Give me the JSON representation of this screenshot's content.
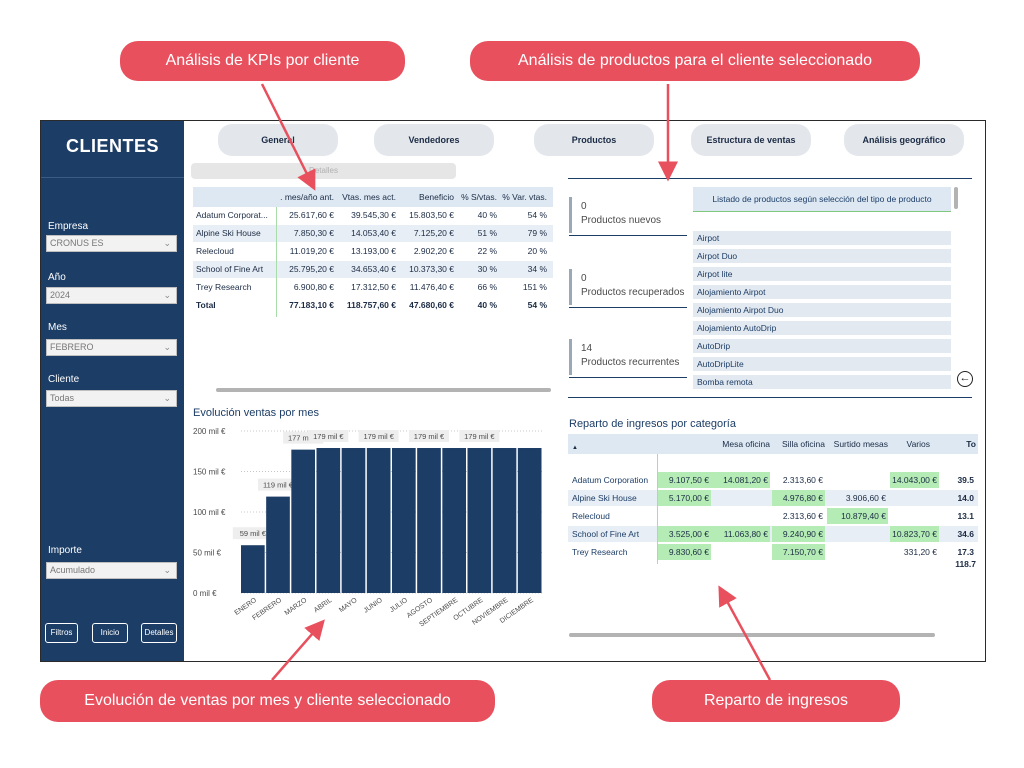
{
  "callouts": {
    "kpi": "Análisis de KPIs por cliente",
    "productos": "Análisis de productos para el cliente seleccionado",
    "evolucion": "Evolución de ventas por mes y cliente seleccionado",
    "reparto": "Reparto de ingresos"
  },
  "sidebar": {
    "title": "CLIENTES",
    "empresa_label": "Empresa",
    "empresa_value": "CRONUS ES",
    "anio_label": "Año",
    "anio_value": "2024",
    "mes_label": "Mes",
    "mes_value": "FEBRERO",
    "cliente_label": "Cliente",
    "cliente_value": "Todas",
    "importe_label": "Importe",
    "importe_value": "Acumulado",
    "buttons": [
      "Filtros",
      "Inicio",
      "Detalles"
    ]
  },
  "tabs": [
    "General",
    "Vendedores",
    "Productos",
    "Estructura de ventas",
    "Análisis geográfico"
  ],
  "kpi_table": {
    "detalles_label": "Detalles",
    "headers": [
      ". mes/año ant.",
      "Vtas. mes act.",
      "Beneficio",
      "% S/vtas.",
      "% Var. vtas."
    ],
    "rows": [
      {
        "name": "Adatum Corporat...",
        "v": [
          "25.617,60 €",
          "39.545,30 €",
          "15.803,50 €",
          "40 %",
          "54 %"
        ]
      },
      {
        "name": "Alpine Ski House",
        "v": [
          "7.850,30 €",
          "14.053,40 €",
          "7.125,20 €",
          "51 %",
          "79 %"
        ]
      },
      {
        "name": "Relecloud",
        "v": [
          "11.019,20 €",
          "13.193,00 €",
          "2.902,20 €",
          "22 %",
          "20 %"
        ]
      },
      {
        "name": "School of Fine Art",
        "v": [
          "25.795,20 €",
          "34.653,40 €",
          "10.373,30 €",
          "30 %",
          "34 %"
        ]
      },
      {
        "name": "Trey Research",
        "v": [
          "6.900,80 €",
          "17.312,50 €",
          "11.476,40 €",
          "66 %",
          "151 %"
        ]
      }
    ],
    "total": {
      "name": "Total",
      "v": [
        "77.183,10 €",
        "118.757,60 €",
        "47.680,60 €",
        "40 %",
        "54 %"
      ]
    }
  },
  "kpis": [
    {
      "value": "0",
      "label": "Productos nuevos"
    },
    {
      "value": "0",
      "label": "Productos recuperados"
    },
    {
      "value": "14",
      "label": "Productos recurrentes"
    }
  ],
  "product_list": {
    "header": "Listado de productos según selección del tipo de producto",
    "items": [
      "Airpot",
      "Airpot Duo",
      "Airpot lite",
      "Alojamiento Airpot",
      "Alojamiento Airpot Duo",
      "Alojamiento AutoDrip",
      "AutoDrip",
      "AutoDripLite",
      "Bomba remota"
    ]
  },
  "chart_data": {
    "type": "bar",
    "title": "Evolución ventas por mes",
    "categories": [
      "ENERO",
      "FEBRERO",
      "MARZO",
      "ABRIL",
      "MAYO",
      "JUNIO",
      "JULIO",
      "AGOSTO",
      "SEPTIEMBRE",
      "OCTUBRE",
      "NOVIEMBRE",
      "DICIEMBRE"
    ],
    "values": [
      59,
      119,
      177,
      179,
      179,
      179,
      179,
      179,
      179,
      179,
      179,
      179
    ],
    "data_labels": [
      "59 mil €",
      "119 mil €",
      "177 mil €",
      "179 mil €",
      "",
      "179 mil €",
      "",
      "179 mil €",
      "",
      "179 mil €",
      "",
      ""
    ],
    "ylim": [
      0,
      200
    ],
    "yticks": [
      0,
      50,
      100,
      150,
      200
    ],
    "ytick_labels": [
      "0 mil €",
      "50 mil €",
      "100 mil €",
      "150 mil €",
      "200 mil €"
    ],
    "bar_color": "#1c3d66",
    "grid": true
  },
  "reparto": {
    "title": "Reparto de ingresos por categoría",
    "headers": [
      "",
      "",
      "Mesa oficina",
      "Silla oficina",
      "Surtido mesas",
      "Varios",
      "To"
    ],
    "rows": [
      {
        "name": "Adatum Corporation",
        "v": [
          "9.107,50 €",
          "14.081,20 €",
          "2.313,60 €",
          "",
          "14.043,00 €",
          "39.5"
        ],
        "g": [
          true,
          true,
          false,
          false,
          true,
          false
        ]
      },
      {
        "name": "Alpine Ski House",
        "v": [
          "5.170,00 €",
          "",
          "4.976,80 €",
          "3.906,60 €",
          "",
          "14.0"
        ],
        "g": [
          true,
          false,
          true,
          false,
          false,
          false
        ]
      },
      {
        "name": "Relecloud",
        "v": [
          "",
          "",
          "2.313,60 €",
          "10.879,40 €",
          "",
          "13.1"
        ],
        "g": [
          false,
          false,
          false,
          true,
          false,
          false
        ]
      },
      {
        "name": "School of Fine Art",
        "v": [
          "3.525,00 €",
          "11.063,80 €",
          "9.240,90 €",
          "",
          "10.823,70 €",
          "34.6"
        ],
        "g": [
          true,
          true,
          true,
          false,
          true,
          false
        ]
      },
      {
        "name": "Trey Research",
        "v": [
          "9.830,60 €",
          "",
          "7.150,70 €",
          "",
          "331,20 €",
          "17.3"
        ],
        "g": [
          true,
          false,
          true,
          false,
          false,
          false
        ]
      }
    ],
    "total": "118.7"
  },
  "colors": {
    "callout": "#e8505e",
    "sidebar": "#1c3d66",
    "highlight": "#b5ecb5"
  }
}
